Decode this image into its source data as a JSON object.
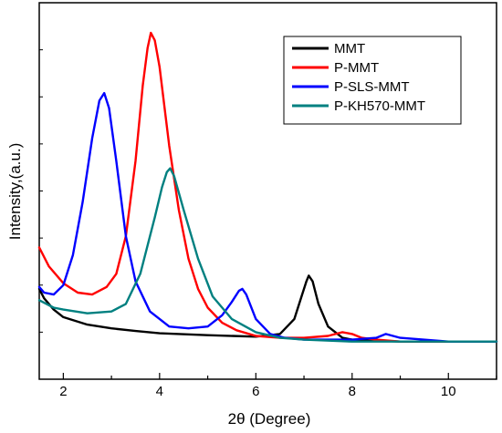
{
  "chart_data": {
    "type": "line",
    "title": "",
    "xlabel": "2θ (Degree)",
    "ylabel": "Intensity,(a.u.)",
    "xlim": [
      1.5,
      11
    ],
    "ylim": [
      0,
      1
    ],
    "xticks": [
      2,
      4,
      6,
      8,
      10
    ],
    "y_tick_labels_shown": false,
    "grid": false,
    "legend_position": "top-right",
    "series": [
      {
        "name": "MMT",
        "color": "#000000",
        "x": [
          1.5,
          1.6,
          1.8,
          2.0,
          2.5,
          3.0,
          3.5,
          4.0,
          5.0,
          6.0,
          6.5,
          6.8,
          6.95,
          7.05,
          7.1,
          7.18,
          7.3,
          7.5,
          7.8,
          8.0,
          9.0,
          10.0,
          11.0
        ],
        "y": [
          0.24,
          0.215,
          0.185,
          0.165,
          0.145,
          0.135,
          0.128,
          0.122,
          0.117,
          0.113,
          0.12,
          0.16,
          0.22,
          0.26,
          0.275,
          0.26,
          0.2,
          0.14,
          0.11,
          0.105,
          0.1,
          0.1,
          0.1
        ]
      },
      {
        "name": "P-MMT",
        "color": "#ff0000",
        "x": [
          1.5,
          1.7,
          2.0,
          2.3,
          2.6,
          2.9,
          3.1,
          3.3,
          3.5,
          3.65,
          3.75,
          3.82,
          3.9,
          4.0,
          4.2,
          4.4,
          4.6,
          4.8,
          5.0,
          5.3,
          5.6,
          6.0,
          6.5,
          7.0,
          7.5,
          7.8,
          8.0,
          8.2,
          8.5,
          9.0,
          10.0,
          11.0
        ],
        "y": [
          0.35,
          0.3,
          0.255,
          0.23,
          0.225,
          0.245,
          0.28,
          0.38,
          0.58,
          0.78,
          0.88,
          0.92,
          0.9,
          0.83,
          0.62,
          0.45,
          0.32,
          0.24,
          0.19,
          0.15,
          0.13,
          0.115,
          0.11,
          0.11,
          0.115,
          0.125,
          0.12,
          0.11,
          0.105,
          0.1,
          0.1,
          0.1
        ]
      },
      {
        "name": "P-SLS-MMT",
        "color": "#0000ff",
        "x": [
          1.5,
          1.6,
          1.8,
          2.0,
          2.2,
          2.4,
          2.6,
          2.75,
          2.85,
          2.95,
          3.1,
          3.3,
          3.5,
          3.8,
          4.2,
          4.6,
          5.0,
          5.3,
          5.5,
          5.65,
          5.72,
          5.8,
          6.0,
          6.3,
          6.6,
          7.0,
          7.5,
          8.0,
          8.5,
          8.7,
          9.0,
          10.0,
          11.0
        ],
        "y": [
          0.245,
          0.23,
          0.225,
          0.25,
          0.33,
          0.47,
          0.64,
          0.74,
          0.76,
          0.72,
          0.58,
          0.38,
          0.26,
          0.18,
          0.14,
          0.135,
          0.14,
          0.17,
          0.205,
          0.235,
          0.24,
          0.225,
          0.16,
          0.12,
          0.11,
          0.105,
          0.105,
          0.105,
          0.11,
          0.12,
          0.11,
          0.1,
          0.1
        ]
      },
      {
        "name": "P-KH570-MMT",
        "color": "#008080",
        "x": [
          1.5,
          1.8,
          2.0,
          2.5,
          3.0,
          3.3,
          3.6,
          3.9,
          4.05,
          4.15,
          4.22,
          4.3,
          4.5,
          4.8,
          5.1,
          5.5,
          6.0,
          6.5,
          7.0,
          8.0,
          9.0,
          10.0,
          11.0
        ],
        "y": [
          0.21,
          0.19,
          0.185,
          0.175,
          0.18,
          0.2,
          0.28,
          0.43,
          0.51,
          0.55,
          0.56,
          0.54,
          0.45,
          0.32,
          0.22,
          0.16,
          0.125,
          0.11,
          0.105,
          0.1,
          0.1,
          0.1,
          0.1
        ]
      }
    ]
  }
}
